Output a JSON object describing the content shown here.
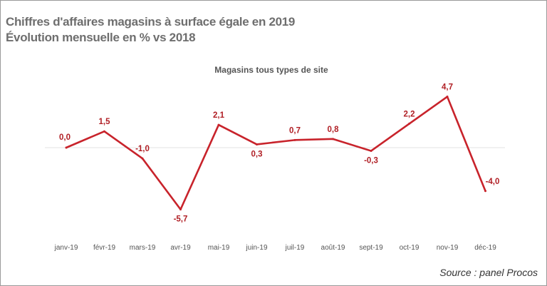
{
  "header": {
    "title_line1": "Chiffres d'affaires magasins à surface égale en 2019",
    "title_line2": "Évolution mensuelle en % vs 2018"
  },
  "footer": {
    "source": "Source : panel Procos"
  },
  "chart_data": {
    "type": "line",
    "title": "Magasins tous types de site",
    "xlabel": "",
    "ylabel": "",
    "categories": [
      "janv-19",
      "févr-19",
      "mars-19",
      "avr-19",
      "mai-19",
      "juin-19",
      "juil-19",
      "août-19",
      "sept-19",
      "oct-19",
      "nov-19",
      "déc-19"
    ],
    "series": [
      {
        "values": [
          0.0,
          1.5,
          -1.0,
          -5.7,
          2.1,
          0.3,
          0.7,
          0.8,
          -0.3,
          2.2,
          4.7,
          -4.0
        ],
        "labels": [
          "0,0",
          "1,5",
          "-1,0",
          "-5,7",
          "2,1",
          "0,3",
          "0,7",
          "0,8",
          "-0,3",
          "2,2",
          "4,7",
          "-4,0"
        ],
        "color": "#c8232b"
      }
    ],
    "grid": false,
    "legend": "none",
    "zero_line_color": "#e3e3e3",
    "label_color": "#b01e24",
    "tick_color": "#555555"
  }
}
